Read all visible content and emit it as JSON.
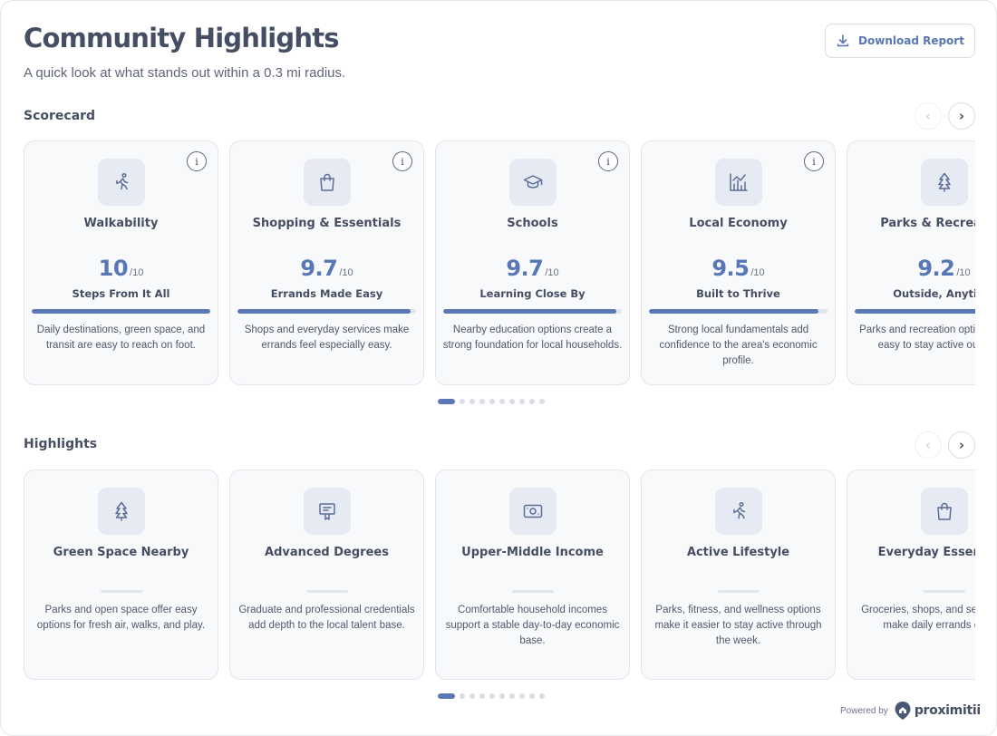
{
  "header": {
    "title": "Community Highlights",
    "subtitle": "A quick look at what stands out within a 0.3 mi radius.",
    "download_label": "Download Report"
  },
  "scorecard": {
    "title": "Scorecard",
    "nav_prev": "‹",
    "nav_next": "›",
    "score_max": "/10",
    "info_label": "i",
    "cards": [
      {
        "icon": "walking-person-icon",
        "title": "Walkability",
        "score": "10",
        "fill": 1.0,
        "tagline": "Steps From It All",
        "desc": "Daily destinations, green space, and transit are easy to reach on foot.",
        "has_info": true
      },
      {
        "icon": "shopping-bag-icon",
        "title": "Shopping & Essentials",
        "score": "9.7",
        "fill": 0.97,
        "tagline": "Errands Made Easy",
        "desc": "Shops and everyday services make errands feel especially easy.",
        "has_info": true
      },
      {
        "icon": "graduation-cap-icon",
        "title": "Schools",
        "score": "9.7",
        "fill": 0.97,
        "tagline": "Learning Close By",
        "desc": "Nearby education options create a strong foundation for local households.",
        "has_info": true
      },
      {
        "icon": "bar-chart-icon",
        "title": "Local Economy",
        "score": "9.5",
        "fill": 0.95,
        "tagline": "Built to Thrive",
        "desc": "Strong local fundamentals add confidence to the area's economic profile.",
        "has_info": true
      },
      {
        "icon": "tree-icon",
        "title": "Parks & Recreation",
        "score": "9.2",
        "fill": 0.92,
        "tagline": "Outside, Anytime",
        "desc": "Parks and recreation options make it easy to stay active outdoors.",
        "has_info": true
      }
    ],
    "pagination": {
      "count": 10,
      "active": 0
    }
  },
  "highlights": {
    "title": "Highlights",
    "nav_prev": "‹",
    "nav_next": "›",
    "cards": [
      {
        "icon": "tree-icon",
        "title": "Green Space Nearby",
        "desc": "Parks and open space offer easy options for fresh air, walks, and play."
      },
      {
        "icon": "diploma-icon",
        "title": "Advanced Degrees",
        "desc": "Graduate and professional credentials add depth to the local talent base."
      },
      {
        "icon": "cash-icon",
        "title": "Upper-Middle Income",
        "desc": "Comfortable household incomes support a stable day-to-day economic base."
      },
      {
        "icon": "walking-person-icon",
        "title": "Active Lifestyle",
        "desc": "Parks, fitness, and wellness options make it easier to stay active through the week."
      },
      {
        "icon": "shopping-bag-icon",
        "title": "Everyday Essentials",
        "desc": "Groceries, shops, and services help make daily errands easier."
      }
    ],
    "pagination": {
      "count": 10,
      "active": 0
    }
  },
  "footer": {
    "powered_by": "Powered by",
    "brand": "proximitii"
  },
  "colors": {
    "accent": "#5b78b5",
    "title": "#454e62",
    "card_bg": "#f8f9fb",
    "icon_tile": "#e6eaf2"
  }
}
